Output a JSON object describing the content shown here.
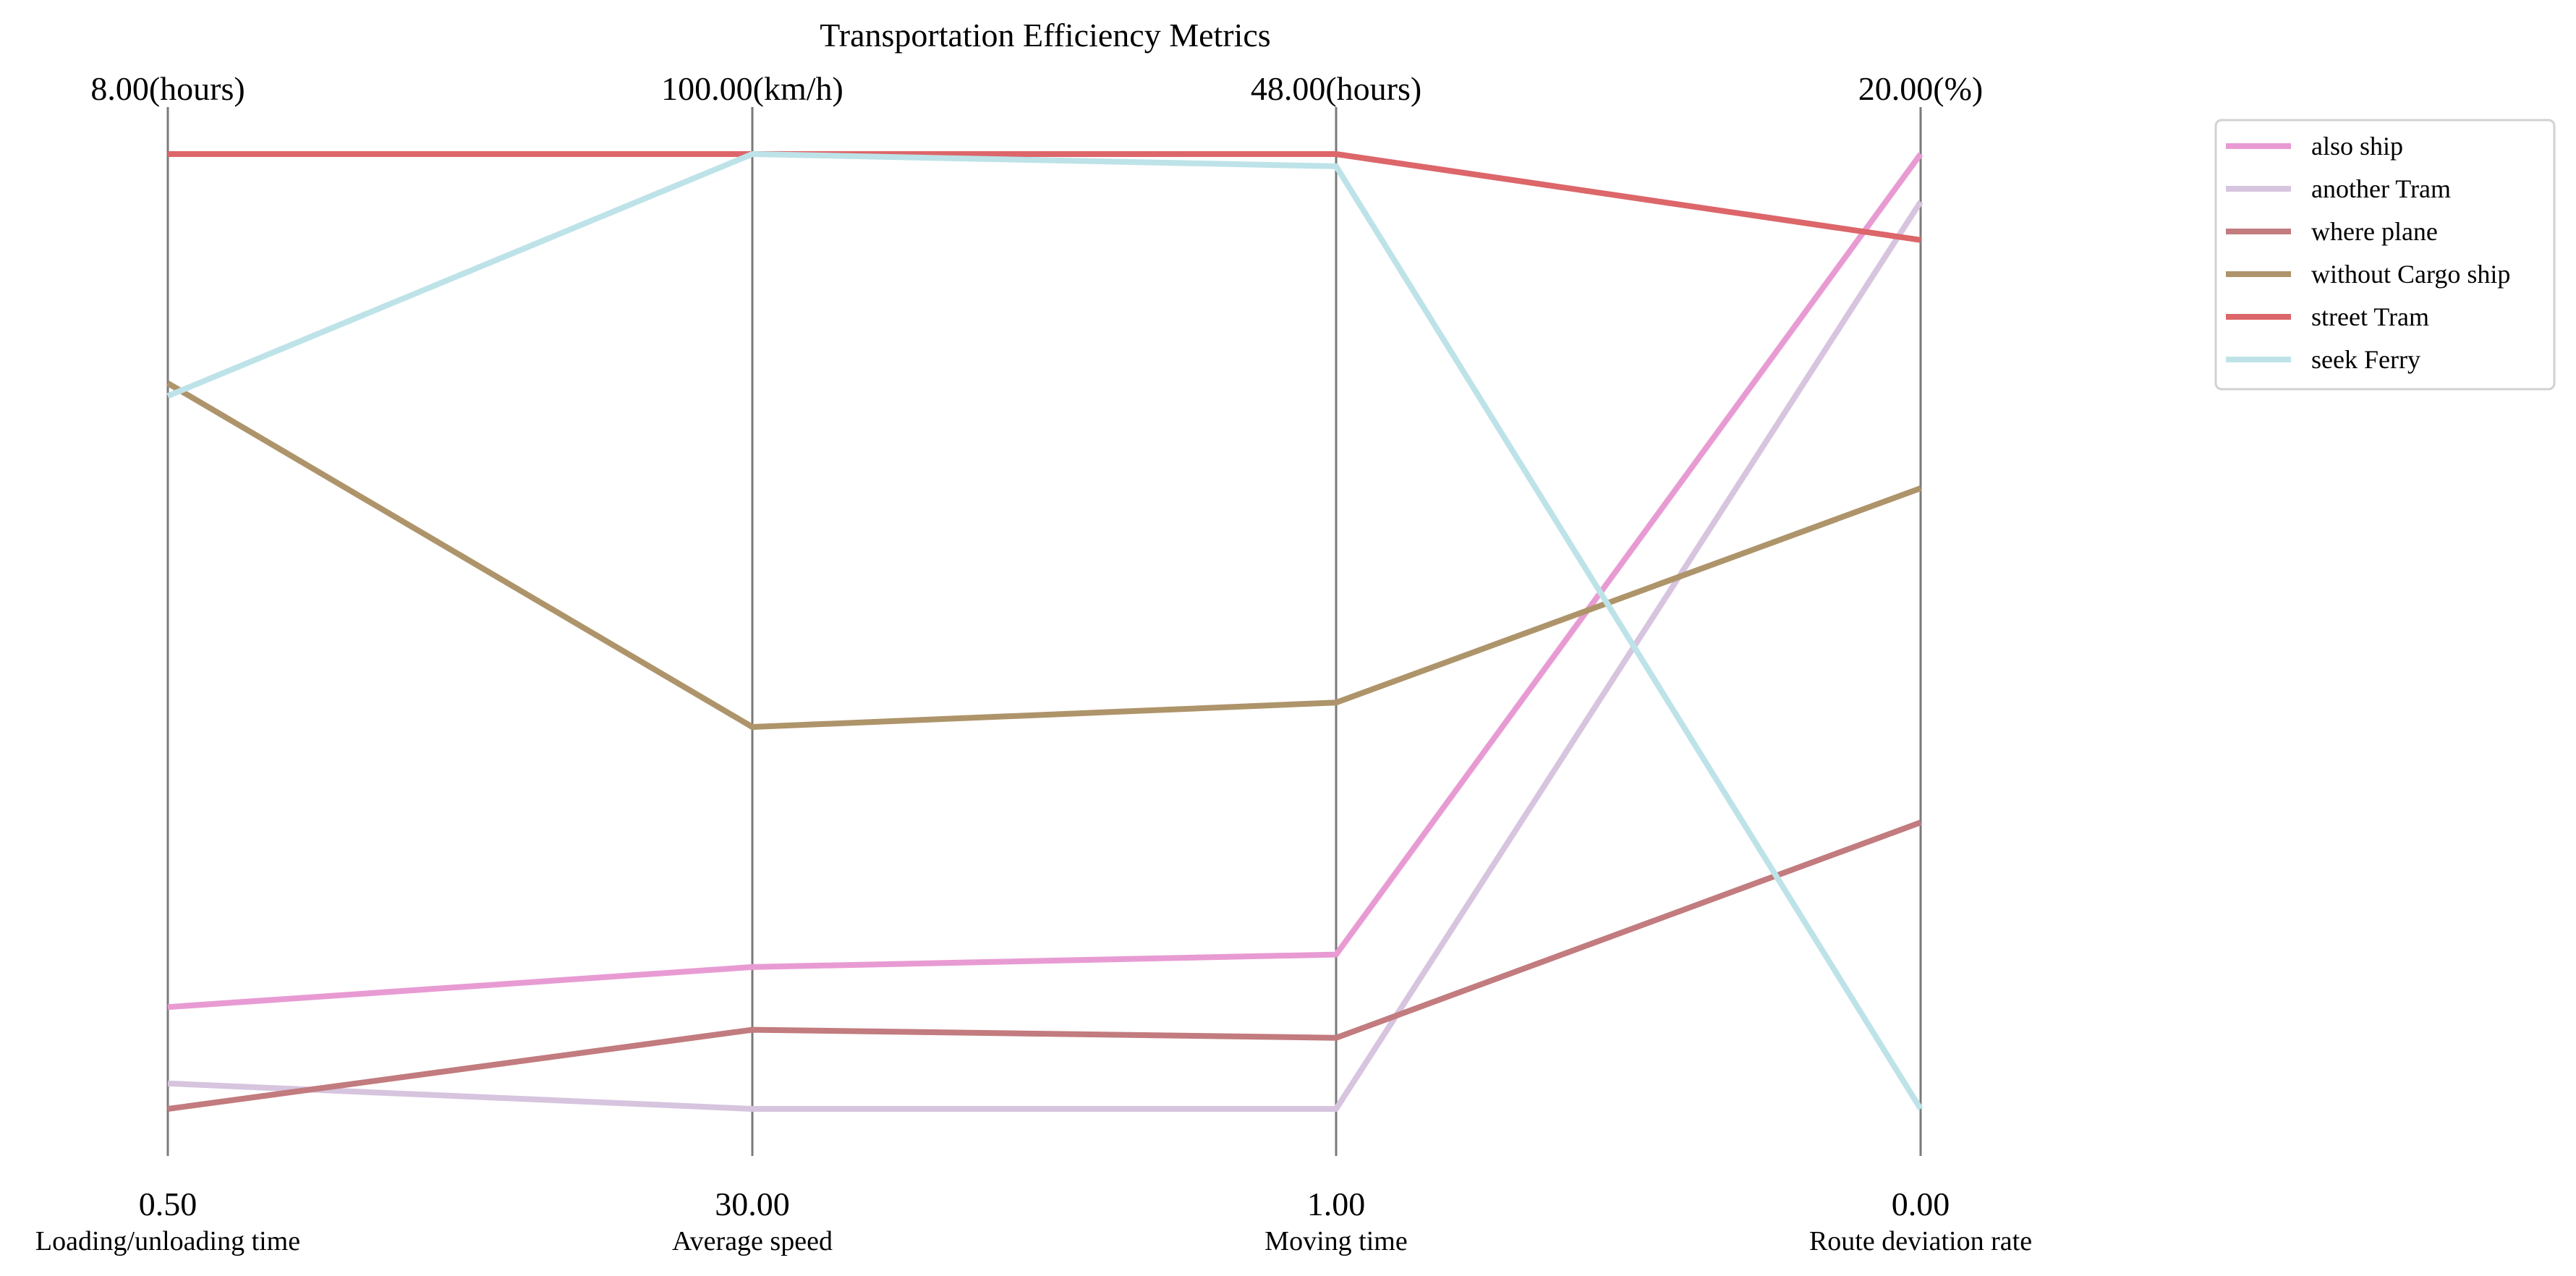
{
  "chart_data": {
    "type": "parallel_coordinates",
    "title": "Transportation Efficiency Metrics",
    "axes": [
      {
        "name": "Loading/unloading time",
        "min": 0.5,
        "max": 8.0,
        "min_label": "0.50",
        "max_label": "8.00(hours)",
        "unit": "hours"
      },
      {
        "name": "Average speed",
        "min": 30.0,
        "max": 100.0,
        "min_label": "30.00",
        "max_label": "100.00(km/h)",
        "unit": "km/h"
      },
      {
        "name": "Moving time",
        "min": 1.0,
        "max": 48.0,
        "min_label": "1.00",
        "max_label": "48.00(hours)",
        "unit": "hours"
      },
      {
        "name": "Route deviation rate",
        "min": 0.0,
        "max": 20.0,
        "min_label": "0.00",
        "max_label": "20.00(%)",
        "unit": "%"
      }
    ],
    "series": [
      {
        "name": "also ship",
        "color": "#e89bd3",
        "values": [
          1.3,
          40.4,
          8.6,
          20.0
        ]
      },
      {
        "name": "another Tram",
        "color": "#d7c4df",
        "values": [
          0.7,
          30.0,
          1.0,
          19.0
        ]
      },
      {
        "name": "where plane",
        "color": "#c27b7e",
        "values": [
          0.5,
          35.8,
          4.5,
          6.0
        ]
      },
      {
        "name": "without Cargo ship",
        "color": "#ae946a",
        "values": [
          6.2,
          58.0,
          21.0,
          13.0
        ]
      },
      {
        "name": "street Tram",
        "color": "#dc6669",
        "values": [
          8.0,
          100.0,
          48.0,
          18.2
        ]
      },
      {
        "name": "seek Ferry",
        "color": "#bde3e8",
        "values": [
          6.1,
          100.0,
          47.4,
          0.0
        ]
      }
    ],
    "legend_position": "top-right",
    "grid": false
  }
}
